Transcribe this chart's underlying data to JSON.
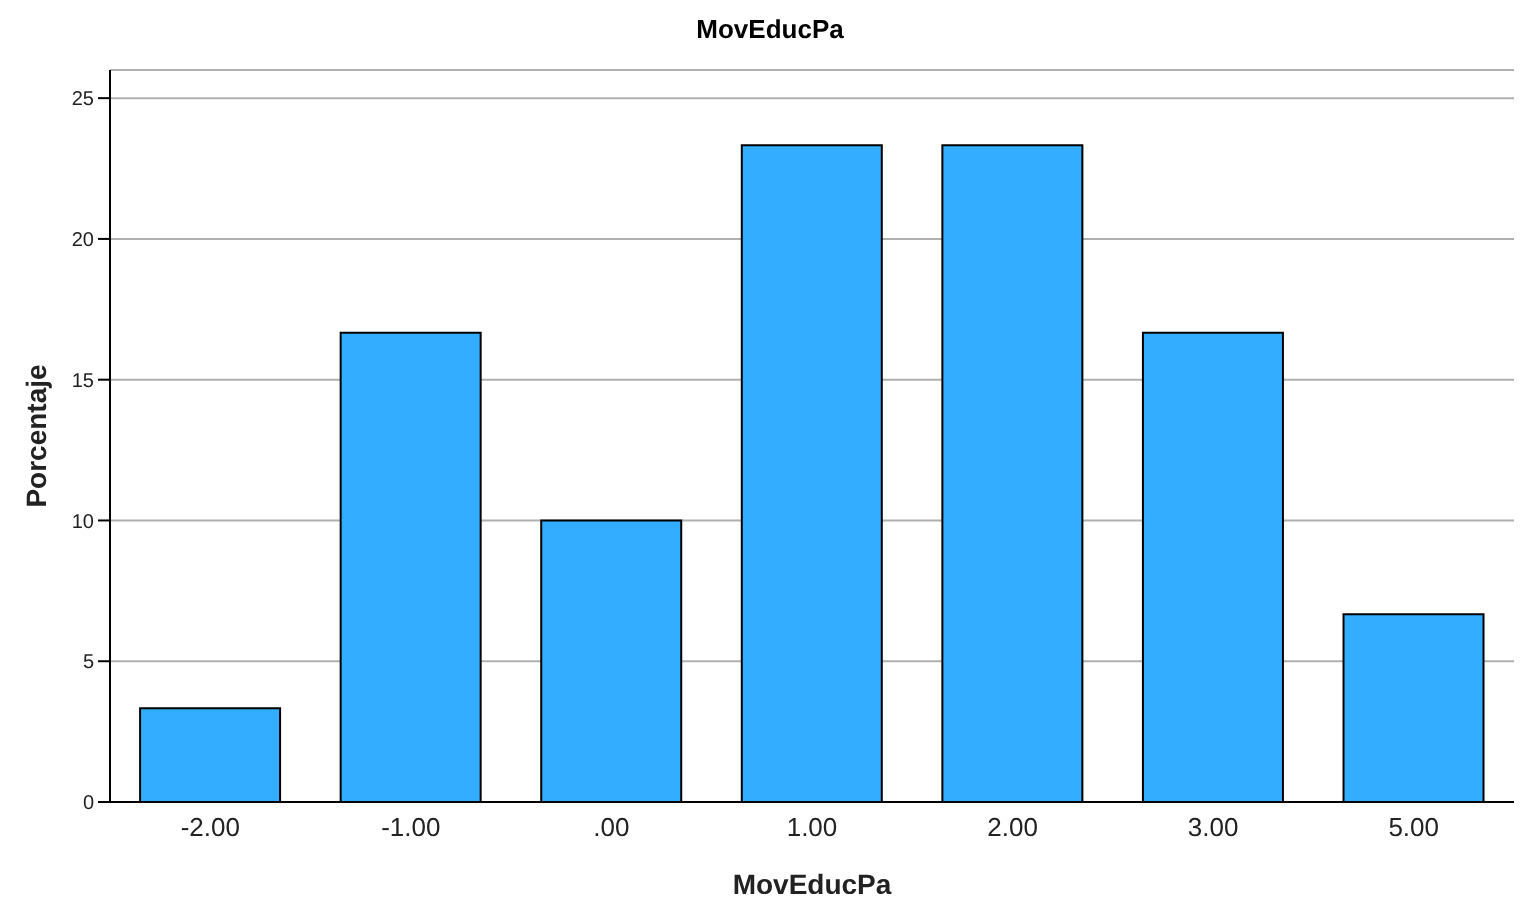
{
  "chart_data": {
    "type": "bar",
    "title": "MovEducPa",
    "xlabel": "MovEducPa",
    "ylabel": "Porcentaje",
    "categories": [
      "-2.00",
      "-1.00",
      ".00",
      "1.00",
      "2.00",
      "3.00",
      "5.00"
    ],
    "values": [
      3.33,
      16.67,
      10,
      23.33,
      23.33,
      16.67,
      6.67
    ],
    "color": "#33adff",
    "ylim": [
      0,
      26
    ],
    "yticks": [
      0,
      5,
      10,
      15,
      20,
      25
    ],
    "grid": "y"
  }
}
